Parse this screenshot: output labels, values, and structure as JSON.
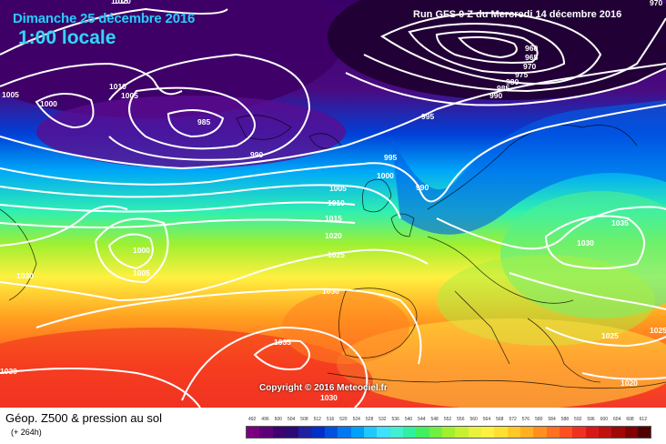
{
  "header": {
    "date": "Dimanche 25 décembre 2016",
    "hour": "1:00 locale",
    "run": "Run GFS 0 Z du Mercredi 14 décembre 2016"
  },
  "footer": {
    "title": "Géop. Z500 & pression au sol",
    "forecast_hour": "(+ 264h)",
    "copyright": "Copyright © 2016 Meteociel.fr"
  },
  "isobar_labels": [
    {
      "text": "1020"
    },
    {
      "text": "1005"
    },
    {
      "text": "1000"
    },
    {
      "text": "1010"
    },
    {
      "text": "1005"
    },
    {
      "text": "985"
    },
    {
      "text": "990"
    },
    {
      "text": "995"
    },
    {
      "text": "995"
    },
    {
      "text": "1000"
    },
    {
      "text": "990"
    },
    {
      "text": "1005"
    },
    {
      "text": "1010"
    },
    {
      "text": "1015"
    },
    {
      "text": "1020"
    },
    {
      "text": "1025"
    },
    {
      "text": "1000"
    },
    {
      "text": "1005"
    },
    {
      "text": "1030"
    },
    {
      "text": "1030"
    },
    {
      "text": "1035"
    },
    {
      "text": "1030"
    },
    {
      "text": "1030"
    },
    {
      "text": "1035"
    },
    {
      "text": "1030"
    },
    {
      "text": "1025"
    },
    {
      "text": "1020"
    },
    {
      "text": "1025"
    },
    {
      "text": "960"
    },
    {
      "text": "965"
    },
    {
      "text": "970"
    },
    {
      "text": "975"
    },
    {
      "text": "980"
    },
    {
      "text": "985"
    },
    {
      "text": "990"
    },
    {
      "text": "970"
    },
    {
      "text": "1015"
    }
  ],
  "scale": {
    "labels": [
      "492",
      "496",
      "500",
      "504",
      "508",
      "512",
      "516",
      "520",
      "524",
      "528",
      "532",
      "536",
      "540",
      "544",
      "548",
      "552",
      "556",
      "560",
      "564",
      "568",
      "572",
      "576",
      "580",
      "584",
      "588",
      "592",
      "596",
      "600",
      "604",
      "608",
      "612"
    ],
    "colors": [
      "#7a0080",
      "#5d007a",
      "#3c0070",
      "#2b0a78",
      "#2020a0",
      "#0030c8",
      "#0050e0",
      "#0078f0",
      "#00a0f8",
      "#20c8ff",
      "#40e0ff",
      "#40f0d0",
      "#30f0a0",
      "#40f060",
      "#70f040",
      "#a0f030",
      "#c8f030",
      "#e8f040",
      "#fff040",
      "#ffe030",
      "#ffc828",
      "#ffb020",
      "#ff9020",
      "#ff7020",
      "#ff5020",
      "#f03020",
      "#d81818",
      "#c01010",
      "#a00808",
      "#800000",
      "#500000"
    ]
  }
}
